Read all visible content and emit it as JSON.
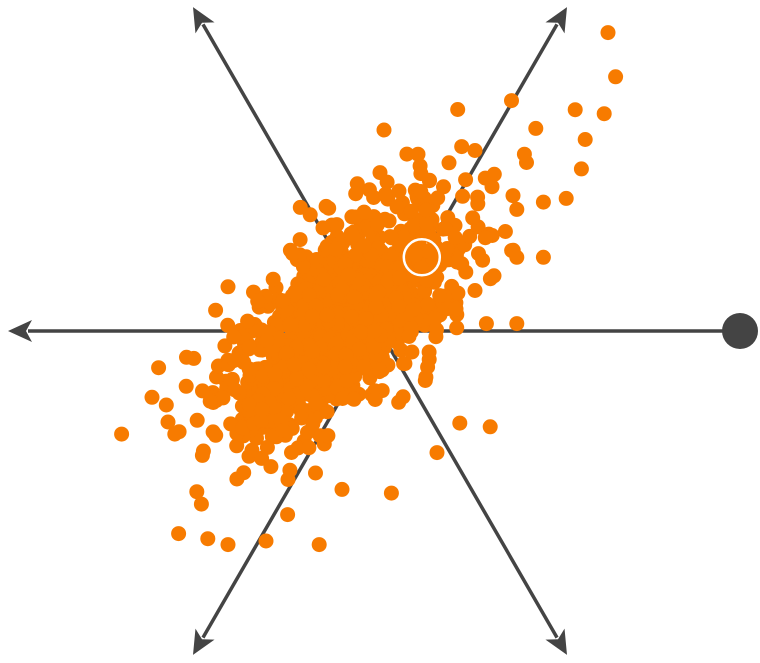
{
  "chart_data": {
    "type": "scatter",
    "subtype": "radial-projection",
    "title": "",
    "xlabel": "",
    "ylabel": "",
    "grid": false,
    "legend": "none",
    "axes": [
      {
        "name": "",
        "angle_deg": 0,
        "has_handle": true
      },
      {
        "name": "",
        "angle_deg": 60
      },
      {
        "name": "",
        "angle_deg": 120
      },
      {
        "name": "",
        "angle_deg": 180
      },
      {
        "name": "",
        "angle_deg": 240
      },
      {
        "name": "",
        "angle_deg": 300
      }
    ],
    "xlim": [
      -10,
      10
    ],
    "ylim": [
      -9,
      9
    ],
    "cluster": {
      "count": 1200,
      "center": [
        -1.0,
        0.2
      ],
      "major_axis_angle_deg": 50,
      "major_sd": 2.05,
      "minor_sd": 0.95
    },
    "series": [
      {
        "color": "#f77b00",
        "points": [
          [
            6.0,
            8.1
          ],
          [
            6.2,
            6.9
          ],
          [
            5.9,
            5.9
          ],
          [
            5.4,
            5.2
          ],
          [
            5.3,
            4.4
          ],
          [
            4.1,
            5.5
          ],
          [
            3.8,
            4.8
          ],
          [
            4.3,
            3.5
          ],
          [
            4.9,
            3.6
          ],
          [
            3.6,
            3.3
          ],
          [
            3.3,
            2.7
          ],
          [
            3.6,
            2.0
          ],
          [
            4.3,
            2.0
          ],
          [
            3.0,
            1.5
          ],
          [
            2.5,
            1.1
          ],
          [
            3.6,
            0.2
          ],
          [
            2.8,
            0.2
          ],
          [
            -4.0,
            1.2
          ],
          [
            -5.1,
            -1.5
          ],
          [
            -5.4,
            -2.8
          ],
          [
            -4.7,
            -4.7
          ],
          [
            -5.3,
            -5.5
          ],
          [
            -4.0,
            -5.8
          ],
          [
            -3.0,
            -5.7
          ],
          [
            -1.6,
            -5.8
          ],
          [
            -1.0,
            -4.3
          ],
          [
            0.5,
            3.8
          ],
          [
            0.0,
            4.3
          ],
          [
            -1.5,
            2.8
          ],
          [
            -2.3,
            2.1
          ],
          [
            1.5,
            -3.3
          ],
          [
            2.9,
            -2.6
          ],
          [
            2.1,
            -2.5
          ],
          [
            0.3,
            -4.4
          ],
          [
            -6.8,
            -2.8
          ],
          [
            -6.0,
            -1.8
          ],
          [
            1.0,
            4.8
          ],
          [
            2.5,
            4.9
          ]
        ]
      }
    ],
    "selected_point": {
      "x": 1.1,
      "y": 2.0
    }
  },
  "colors": {
    "points": "#f77b00",
    "axes": "#444444",
    "handle": "#444444",
    "selection_ring": "#ffffff",
    "background": "#ffffff"
  }
}
